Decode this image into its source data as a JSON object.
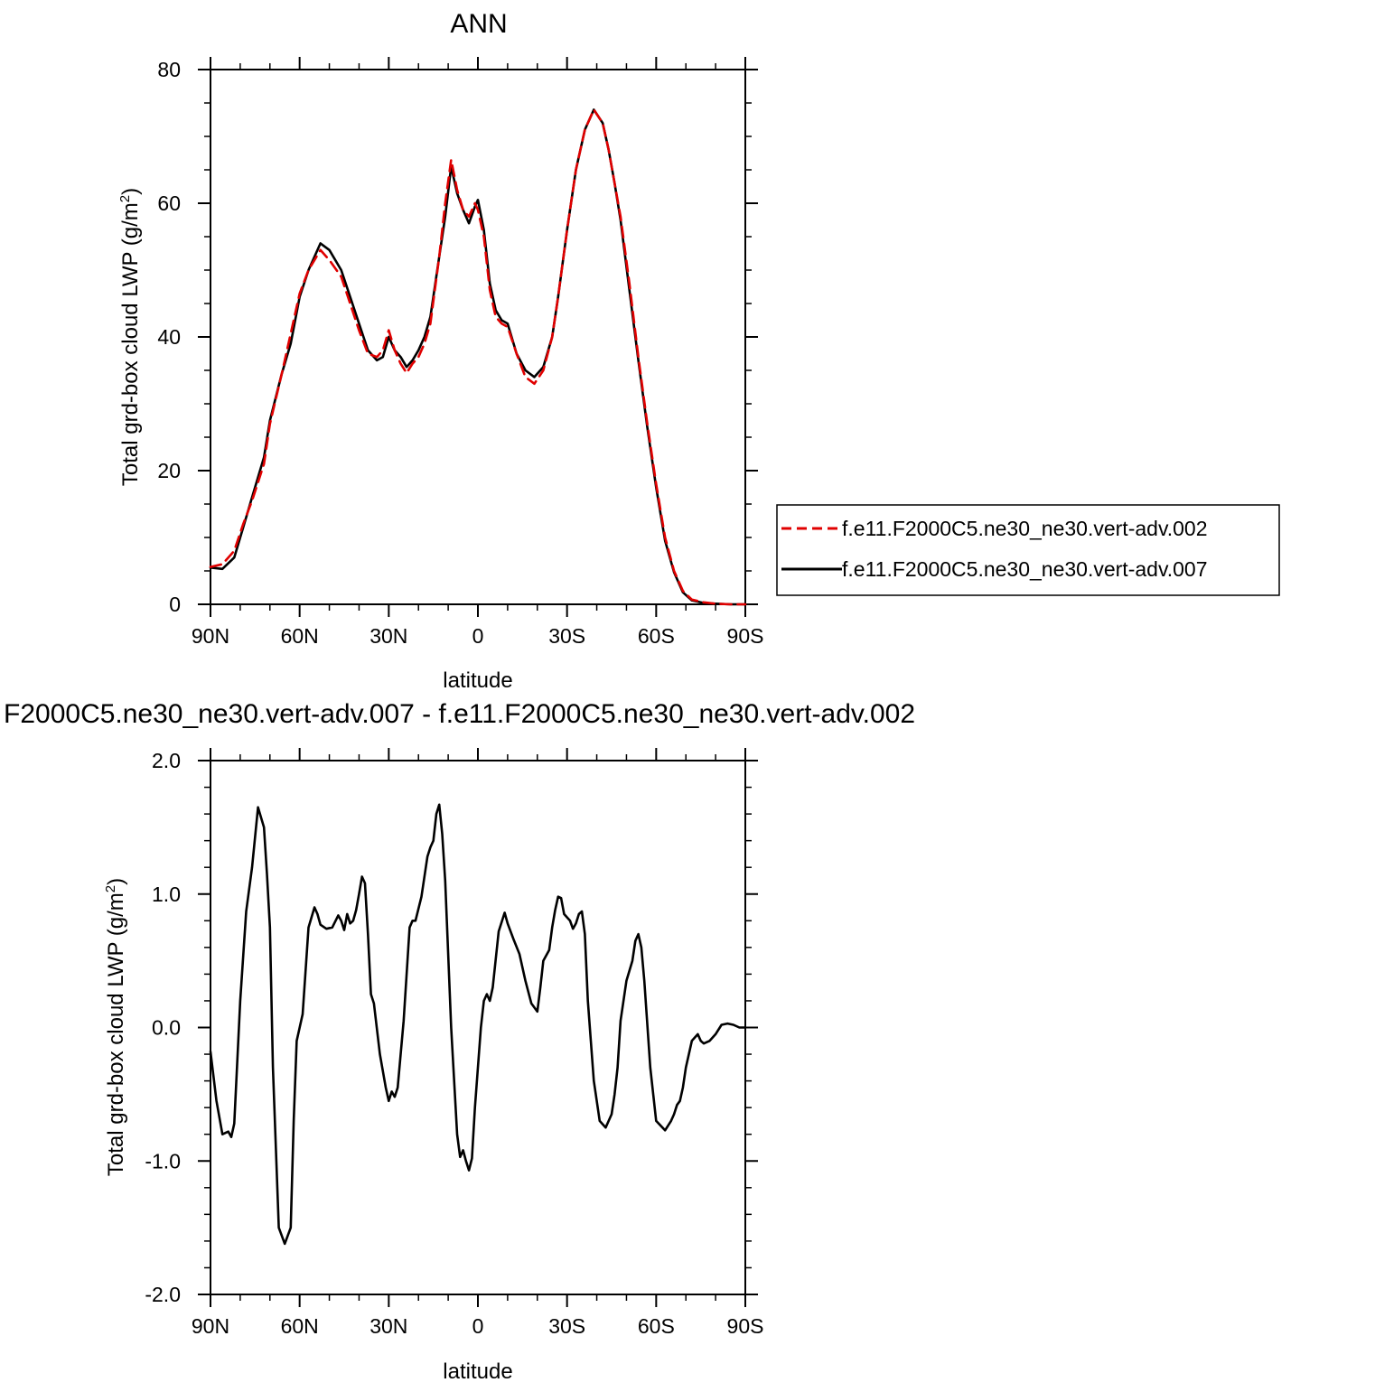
{
  "chart_data": [
    {
      "type": "line",
      "title": "ANN",
      "xlabel": "latitude",
      "ylabel": "Total grd-box cloud LWP (g/m",
      "ylabel_sup": "2",
      "ylabel_close": ")",
      "xlim": [
        90,
        -90
      ],
      "ylim": [
        0,
        80
      ],
      "x_ticks": [
        90,
        60,
        30,
        0,
        -30,
        -60,
        -90
      ],
      "x_tick_labels": [
        "90N",
        "60N",
        "30N",
        "0",
        "30S",
        "60S",
        "90S"
      ],
      "y_ticks": [
        0,
        20,
        40,
        60,
        80
      ],
      "y_tick_labels": [
        "0",
        "20",
        "40",
        "60",
        "80"
      ],
      "grid": false,
      "legend_position": "right",
      "series": [
        {
          "name": "f.e11.F2000C5.ne30_ne30.vert-adv.002",
          "color": "#e00000",
          "dash": "dashed",
          "x": [
            90,
            86,
            82,
            79,
            76,
            72,
            70,
            66,
            63,
            60,
            57,
            53,
            50,
            46,
            43,
            40,
            37,
            34,
            32,
            30,
            28,
            26,
            24,
            22,
            20,
            18,
            16,
            13,
            11,
            9,
            7,
            5,
            3,
            1,
            0,
            -2,
            -4,
            -6,
            -8,
            -10,
            -13,
            -16,
            -19,
            -22,
            -25,
            -27,
            -30,
            -33,
            -36,
            -39,
            -42,
            -44,
            -46,
            -48,
            -51,
            -54,
            -57,
            -60,
            -63,
            -66,
            -69,
            -72,
            -76,
            -80,
            -85,
            -90
          ],
          "y": [
            5.6,
            6.0,
            8.0,
            12.0,
            15.5,
            21.0,
            27.0,
            34.5,
            40.5,
            46.5,
            50.0,
            53.0,
            51.5,
            49.0,
            45.0,
            41.0,
            37.5,
            37.0,
            38.0,
            41.0,
            38.0,
            36.0,
            34.6,
            36.0,
            37.0,
            39.0,
            42.0,
            52.0,
            60.0,
            66.5,
            62.0,
            59.0,
            58.0,
            60.0,
            59.0,
            55.0,
            47.0,
            43.0,
            42.0,
            41.5,
            37.5,
            34.0,
            33.0,
            35.0,
            40.0,
            46.0,
            56.0,
            65.0,
            71.0,
            74.0,
            72.0,
            68.0,
            63.0,
            58.0,
            48.0,
            37.0,
            27.0,
            18.0,
            10.0,
            5.0,
            2.0,
            0.7,
            0.3,
            0.1,
            0.0,
            0.0
          ]
        },
        {
          "name": "f.e11.F2000C5.ne30_ne30.vert-adv.007",
          "color": "#000000",
          "dash": "solid",
          "x": [
            90,
            86,
            82,
            79,
            76,
            72,
            70,
            66,
            63,
            60,
            57,
            53,
            50,
            46,
            43,
            40,
            37,
            34,
            32,
            30,
            28,
            26,
            24,
            22,
            20,
            18,
            16,
            13,
            11,
            9,
            7,
            5,
            3,
            1,
            0,
            -2,
            -4,
            -6,
            -8,
            -10,
            -13,
            -16,
            -19,
            -22,
            -25,
            -27,
            -30,
            -33,
            -36,
            -39,
            -42,
            -44,
            -46,
            -48,
            -51,
            -54,
            -57,
            -60,
            -63,
            -66,
            -69,
            -72,
            -76,
            -80,
            -85,
            -90
          ],
          "y": [
            5.5,
            5.3,
            7.0,
            11.5,
            16.0,
            22.0,
            27.5,
            34.5,
            39.0,
            46.0,
            50.0,
            54.0,
            53.0,
            50.0,
            46.0,
            42.0,
            38.0,
            36.5,
            37.0,
            40.0,
            38.0,
            37.0,
            35.5,
            36.5,
            38.0,
            40.0,
            43.0,
            52.0,
            58.0,
            65.5,
            61.5,
            59.0,
            57.0,
            59.5,
            60.5,
            56.0,
            48.0,
            44.0,
            42.5,
            42.0,
            37.5,
            35.0,
            34.0,
            35.5,
            40.0,
            46.0,
            56.0,
            65.0,
            71.0,
            74.0,
            72.0,
            68.0,
            63.0,
            57.5,
            47.0,
            36.5,
            26.5,
            17.5,
            9.5,
            4.8,
            1.8,
            0.6,
            0.2,
            0.1,
            0.0,
            0.0
          ]
        }
      ]
    },
    {
      "type": "line",
      "title": "F2000C5.ne30_ne30.vert-adv.007 - f.e11.F2000C5.ne30_ne30.vert-adv.002",
      "xlabel": "latitude",
      "ylabel": "Total grd-box cloud LWP (g/m",
      "ylabel_sup": "2",
      "ylabel_close": ")",
      "xlim": [
        90,
        -90
      ],
      "ylim": [
        -2.0,
        2.0
      ],
      "x_ticks": [
        90,
        60,
        30,
        0,
        -30,
        -60,
        -90
      ],
      "x_tick_labels": [
        "90N",
        "60N",
        "30N",
        "0",
        "30S",
        "60S",
        "90S"
      ],
      "y_ticks": [
        -2.0,
        -1.0,
        0.0,
        1.0,
        2.0
      ],
      "y_tick_labels": [
        "-2.0",
        "-1.0",
        "0.0",
        "1.0",
        "2.0"
      ],
      "grid": false,
      "series": [
        {
          "color": "#000000",
          "dash": "solid",
          "x": [
            90,
            88,
            86,
            84,
            83,
            82,
            80,
            78,
            76,
            74,
            72,
            71,
            70,
            69,
            67,
            65,
            63,
            62,
            61,
            59,
            57,
            55,
            54,
            53,
            51,
            49,
            47,
            46,
            45,
            44,
            43,
            42,
            41,
            40,
            39,
            38,
            37,
            36,
            35,
            33,
            31,
            30,
            29,
            28,
            27,
            25,
            23,
            22,
            21,
            19,
            17,
            16,
            15,
            14,
            13,
            12,
            11,
            9,
            7,
            6,
            5,
            4,
            3,
            2,
            1,
            0,
            -1,
            -2,
            -3,
            -4,
            -5,
            -7,
            -9,
            -10,
            -12,
            -14,
            -16,
            -18,
            -20,
            -21,
            -22,
            -24,
            -25,
            -26,
            -27,
            -28,
            -29,
            -31,
            -32,
            -33,
            -34,
            -35,
            -36,
            -37,
            -38,
            -39,
            -41,
            -43,
            -45,
            -46,
            -47,
            -48,
            -50,
            -52,
            -53,
            -54,
            -55,
            -56,
            -58,
            -60,
            -63,
            -65,
            -66,
            -67,
            -68,
            -69,
            -70,
            -72,
            -74,
            -75,
            -76,
            -78,
            -80,
            -82,
            -84,
            -86,
            -88,
            -90
          ],
          "y": [
            -0.18,
            -0.55,
            -0.8,
            -0.78,
            -0.82,
            -0.72,
            0.2,
            0.87,
            1.2,
            1.65,
            1.5,
            1.15,
            0.75,
            -0.3,
            -1.5,
            -1.62,
            -1.5,
            -0.7,
            -0.1,
            0.1,
            0.75,
            0.9,
            0.85,
            0.77,
            0.74,
            0.75,
            0.84,
            0.8,
            0.73,
            0.85,
            0.78,
            0.8,
            0.88,
            1.0,
            1.13,
            1.08,
            0.7,
            0.25,
            0.18,
            -0.2,
            -0.45,
            -0.55,
            -0.48,
            -0.52,
            -0.45,
            0.05,
            0.75,
            0.8,
            0.8,
            0.98,
            1.28,
            1.35,
            1.4,
            1.6,
            1.67,
            1.45,
            1.1,
            0.0,
            -0.8,
            -0.97,
            -0.92,
            -1.0,
            -1.07,
            -0.98,
            -0.6,
            -0.3,
            0.0,
            0.2,
            0.25,
            0.2,
            0.3,
            0.72,
            0.86,
            0.78,
            0.66,
            0.55,
            0.35,
            0.18,
            0.12,
            0.3,
            0.5,
            0.58,
            0.75,
            0.88,
            0.98,
            0.97,
            0.85,
            0.8,
            0.74,
            0.78,
            0.85,
            0.87,
            0.7,
            0.2,
            -0.1,
            -0.4,
            -0.7,
            -0.75,
            -0.65,
            -0.5,
            -0.3,
            0.05,
            0.35,
            0.5,
            0.65,
            0.7,
            0.6,
            0.35,
            -0.3,
            -0.7,
            -0.77,
            -0.7,
            -0.65,
            -0.58,
            -0.55,
            -0.45,
            -0.3,
            -0.1,
            -0.05,
            -0.1,
            -0.12,
            -0.1,
            -0.05,
            0.02,
            0.03,
            0.02,
            0.0,
            0.0
          ]
        }
      ]
    }
  ]
}
